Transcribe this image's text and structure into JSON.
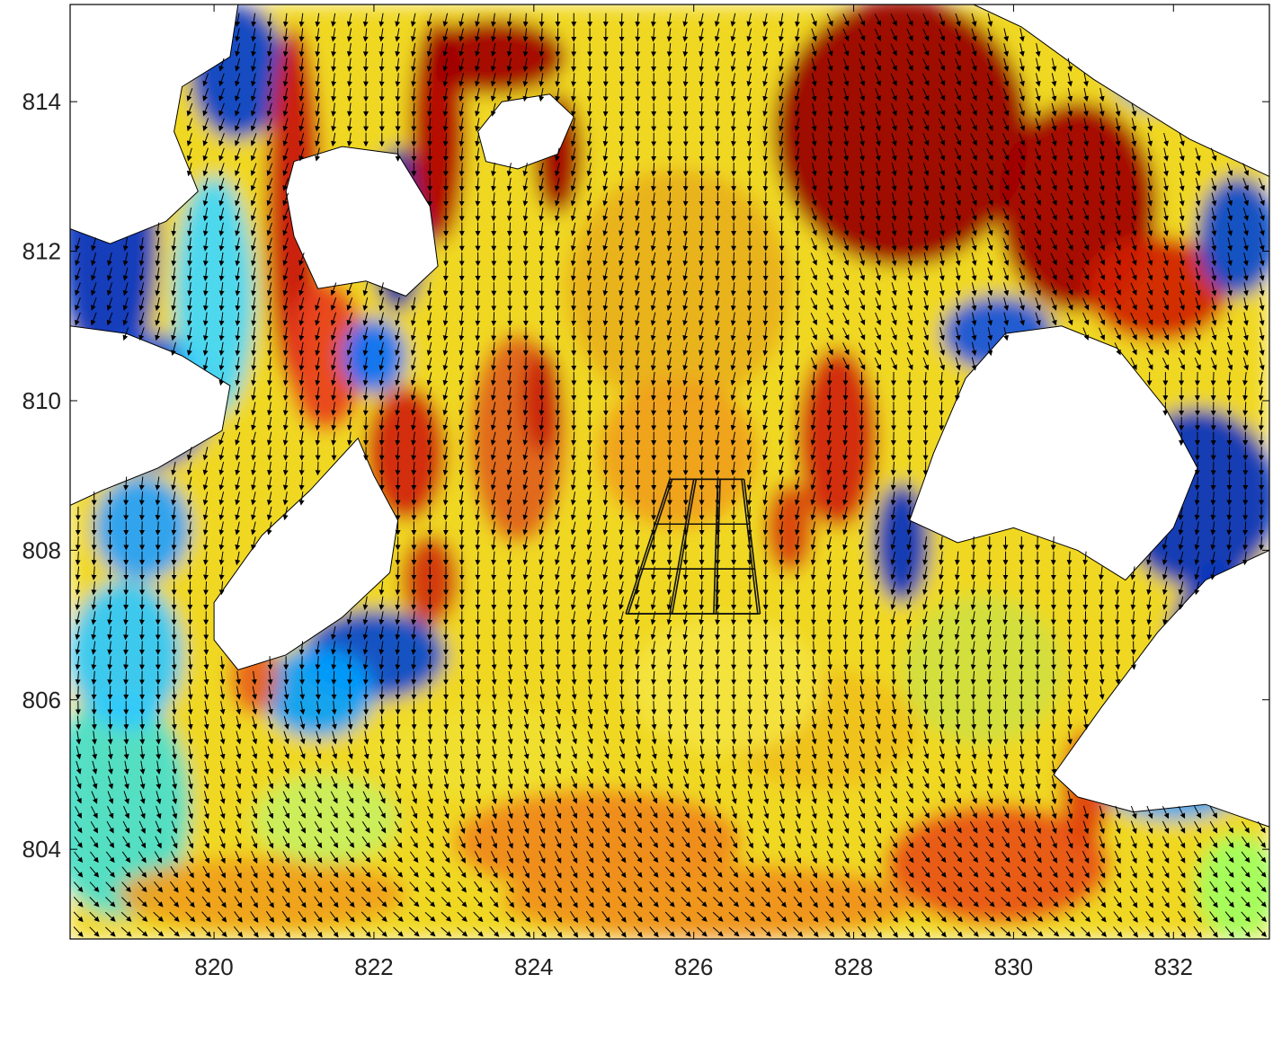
{
  "chart_data": {
    "type": "heatmap",
    "subtype": "current-speed field with velocity vectors",
    "title": "",
    "xlabel": "",
    "ylabel": "",
    "xlim": [
      818.2,
      833.2
    ],
    "ylim": [
      802.8,
      815.3
    ],
    "x_ticks": [
      820,
      822,
      824,
      826,
      828,
      830,
      832
    ],
    "y_ticks": [
      804,
      806,
      808,
      810,
      812,
      814
    ],
    "colormap": "jet",
    "land_color": "#ffffff",
    "grid": false,
    "legend": "none",
    "colorbar": false,
    "vector_field": {
      "mean_direction": "south to south-south-east",
      "spacing": 0.2,
      "note": "arrows drawn on a regular grid over the water area"
    },
    "grid_outline": {
      "corners": [
        [
          825.15,
          807.15
        ],
        [
          826.8,
          807.15
        ],
        [
          826.6,
          808.95
        ],
        [
          825.7,
          808.95
        ]
      ],
      "rows": 3,
      "cols": 3
    },
    "land_masses": [
      {
        "name": "island-north-center",
        "poly": [
          [
            821.0,
            813.2
          ],
          [
            821.6,
            813.4
          ],
          [
            822.3,
            813.3
          ],
          [
            822.7,
            812.6
          ],
          [
            822.8,
            811.8
          ],
          [
            822.4,
            811.4
          ],
          [
            821.9,
            811.6
          ],
          [
            821.3,
            811.5
          ],
          [
            821.0,
            812.2
          ],
          [
            820.9,
            812.8
          ]
        ]
      },
      {
        "name": "island-north-right",
        "poly": [
          [
            823.3,
            813.6
          ],
          [
            823.6,
            814.0
          ],
          [
            824.2,
            814.1
          ],
          [
            824.5,
            813.8
          ],
          [
            824.3,
            813.3
          ],
          [
            823.8,
            813.1
          ],
          [
            823.4,
            813.2
          ]
        ]
      },
      {
        "name": "land-top-left",
        "poly": [
          [
            818.2,
            815.3
          ],
          [
            820.3,
            815.3
          ],
          [
            820.2,
            814.6
          ],
          [
            819.6,
            814.2
          ],
          [
            819.5,
            813.6
          ],
          [
            819.8,
            812.8
          ],
          [
            819.4,
            812.4
          ],
          [
            818.7,
            812.1
          ],
          [
            818.2,
            812.3
          ]
        ]
      },
      {
        "name": "land-left-middle",
        "poly": [
          [
            818.2,
            811.0
          ],
          [
            818.9,
            810.9
          ],
          [
            819.6,
            810.6
          ],
          [
            820.2,
            810.2
          ],
          [
            820.1,
            809.6
          ],
          [
            819.3,
            809.1
          ],
          [
            818.6,
            808.8
          ],
          [
            818.2,
            808.6
          ]
        ]
      },
      {
        "name": "island-left",
        "poly": [
          [
            820.0,
            807.3
          ],
          [
            820.6,
            808.2
          ],
          [
            821.2,
            808.8
          ],
          [
            821.8,
            809.5
          ],
          [
            822.0,
            809.0
          ],
          [
            822.3,
            808.4
          ],
          [
            822.2,
            807.7
          ],
          [
            821.6,
            807.1
          ],
          [
            820.9,
            806.6
          ],
          [
            820.3,
            806.4
          ],
          [
            820.0,
            806.8
          ]
        ]
      },
      {
        "name": "land-right-middle",
        "poly": [
          [
            828.7,
            808.4
          ],
          [
            829.0,
            809.3
          ],
          [
            829.4,
            810.3
          ],
          [
            829.9,
            810.9
          ],
          [
            830.6,
            811.0
          ],
          [
            831.3,
            810.7
          ],
          [
            831.9,
            809.9
          ],
          [
            832.3,
            809.1
          ],
          [
            832.0,
            808.3
          ],
          [
            831.4,
            807.6
          ],
          [
            830.8,
            808.0
          ],
          [
            830.0,
            808.3
          ],
          [
            829.3,
            808.1
          ]
        ]
      },
      {
        "name": "land-right-lower",
        "poly": [
          [
            830.5,
            805.0
          ],
          [
            831.1,
            805.9
          ],
          [
            831.8,
            806.9
          ],
          [
            832.4,
            807.6
          ],
          [
            833.2,
            808.0
          ],
          [
            833.2,
            804.3
          ],
          [
            832.4,
            804.6
          ],
          [
            831.5,
            804.5
          ],
          [
            830.8,
            804.7
          ]
        ]
      },
      {
        "name": "land-top-right",
        "poly": [
          [
            829.5,
            815.3
          ],
          [
            833.2,
            815.3
          ],
          [
            833.2,
            813.0
          ],
          [
            832.2,
            813.5
          ],
          [
            831.0,
            814.3
          ],
          [
            830.1,
            815.0
          ]
        ]
      }
    ]
  }
}
